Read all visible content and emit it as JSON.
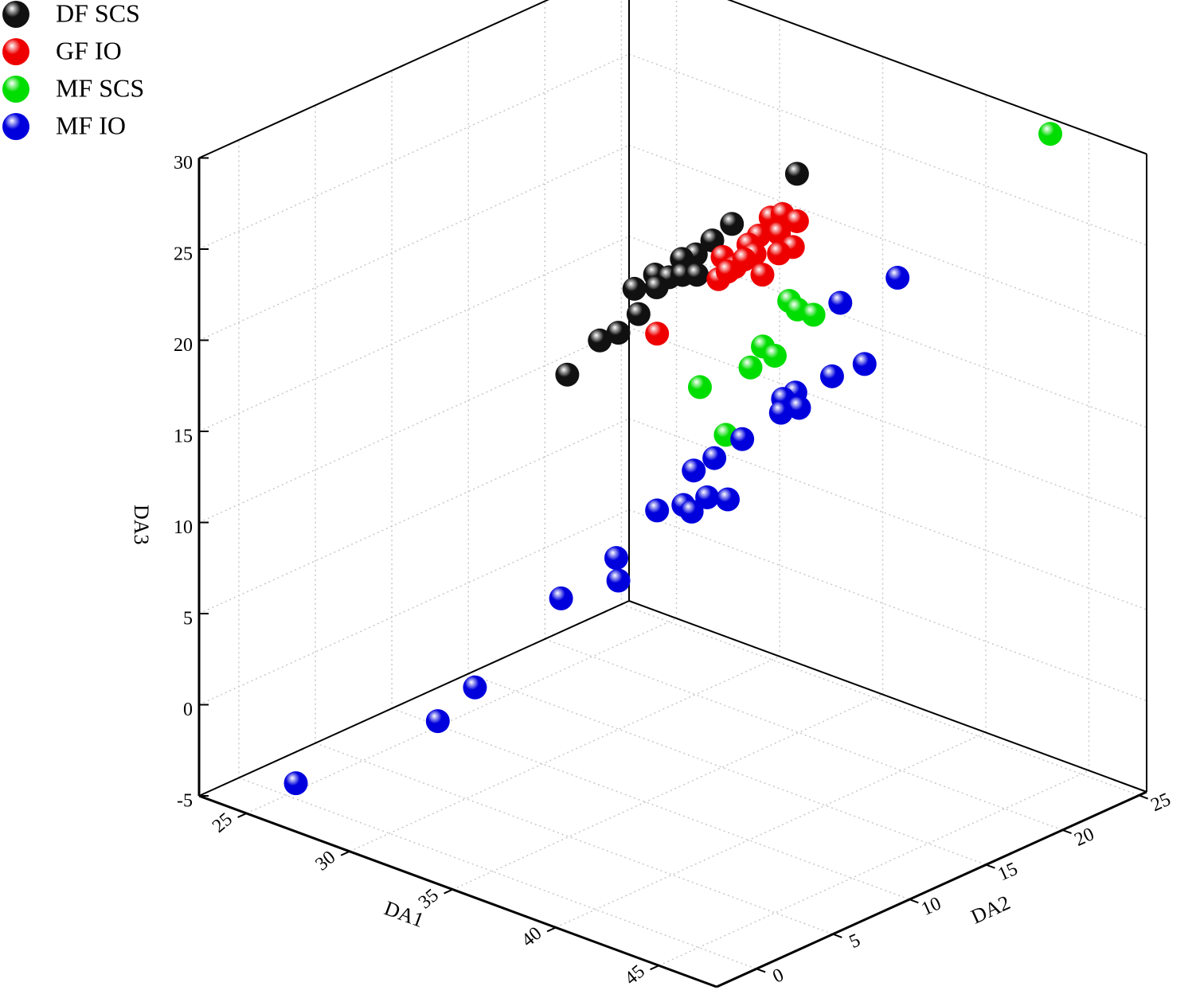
{
  "chart_data": {
    "type": "scatter3d",
    "x_label": "DA1",
    "y_label": "DA2",
    "z_label": "DA3",
    "xlim": [
      22.7,
      47.8
    ],
    "ylim": [
      -2.6,
      25.5
    ],
    "zlim": [
      -5,
      30
    ],
    "xticks": [
      25,
      30,
      35,
      40,
      45
    ],
    "yticks": [
      0,
      5,
      10,
      15,
      20,
      25
    ],
    "zticks": [
      -5,
      0,
      5,
      10,
      15,
      20,
      25,
      30
    ],
    "grid": true,
    "legend": "top-left",
    "series": [
      {
        "name": "DF SCS",
        "color": "#111111",
        "x": [
          35.0,
          36.0,
          37.2,
          36.4,
          37.8,
          36.5,
          35.1,
          33.6,
          34.3,
          35.5,
          34.5,
          35.7,
          36.8,
          35.9,
          36.4
        ],
        "y": [
          19.9,
          14.3,
          11.4,
          11.4,
          8.6,
          8.6,
          11.4,
          14.3,
          14.3,
          8.6,
          11.4,
          8.6,
          5.8,
          5.8,
          3.0
        ],
        "z": [
          25.7,
          25.5,
          26.2,
          25.1,
          26.5,
          25.1,
          23.3,
          21.7,
          22.0,
          23.9,
          22.5,
          22.6,
          23.1,
          22.3,
          21.7
        ]
      },
      {
        "name": "GF IO",
        "color": "#ee0000",
        "x": [
          36.6,
          35.8,
          34.3,
          35.0,
          37.3,
          36.8,
          36.2,
          34.8,
          36.2,
          37.7,
          38.3,
          37.1,
          35.4,
          37.5,
          35.8,
          36.6
        ],
        "y": [
          8.6,
          17.1,
          19.9,
          19.9,
          14.3,
          14.3,
          17.1,
          19.9,
          17.1,
          11.4,
          11.4,
          14.3,
          17.1,
          11.4,
          14.3,
          14.3
        ],
        "z": [
          21.9,
          24.7,
          23.2,
          23.1,
          25.4,
          24.7,
          24.0,
          21.6,
          22.9,
          25.5,
          25.2,
          24.3,
          21.4,
          24.2,
          22.8,
          23.8
        ]
      },
      {
        "name": "MF SCS",
        "color": "#00dd00",
        "x": [
          43.5,
          36.7,
          37.1,
          35.8,
          37.5,
          36.0,
          36.9,
          36.6,
          35.7
        ],
        "y": [
          25.0,
          17.1,
          17.1,
          19.9,
          14.3,
          17.1,
          14.3,
          11.4,
          14.3
        ],
        "z": [
          29.5,
          20.5,
          20.2,
          18.3,
          19.4,
          17.2,
          18.0,
          17.9,
          13.8
        ]
      },
      {
        "name": "MF IO",
        "color": "#0000dd",
        "x": [
          37.8,
          37.1,
          36.2,
          36.7,
          37.0,
          36.4,
          35.1,
          36.3,
          36.5,
          37.3,
          36.3,
          36.6,
          35.8,
          36.2,
          34.8,
          35.8,
          36.7,
          36.8,
          36.1,
          34.0,
          32.2,
          26.8
        ],
        "y": [
          22.7,
          19.9,
          22.7,
          19.9,
          17.1,
          17.1,
          19.9,
          17.1,
          14.3,
          11.4,
          11.4,
          8.6,
          11.4,
          11.4,
          14.3,
          14.3,
          5.8,
          5.8,
          3.0,
          0.2,
          0.2,
          -1.8
        ],
        "z": [
          20.1,
          19.5,
          14.7,
          15.3,
          15.6,
          15.0,
          12.9,
          14.2,
          13.9,
          14.3,
          13.2,
          12.2,
          11.1,
          10.9,
          10.0,
          10.3,
          10.7,
          9.5,
          9.3,
          4.6,
          2.0,
          -2.9
        ]
      }
    ]
  }
}
